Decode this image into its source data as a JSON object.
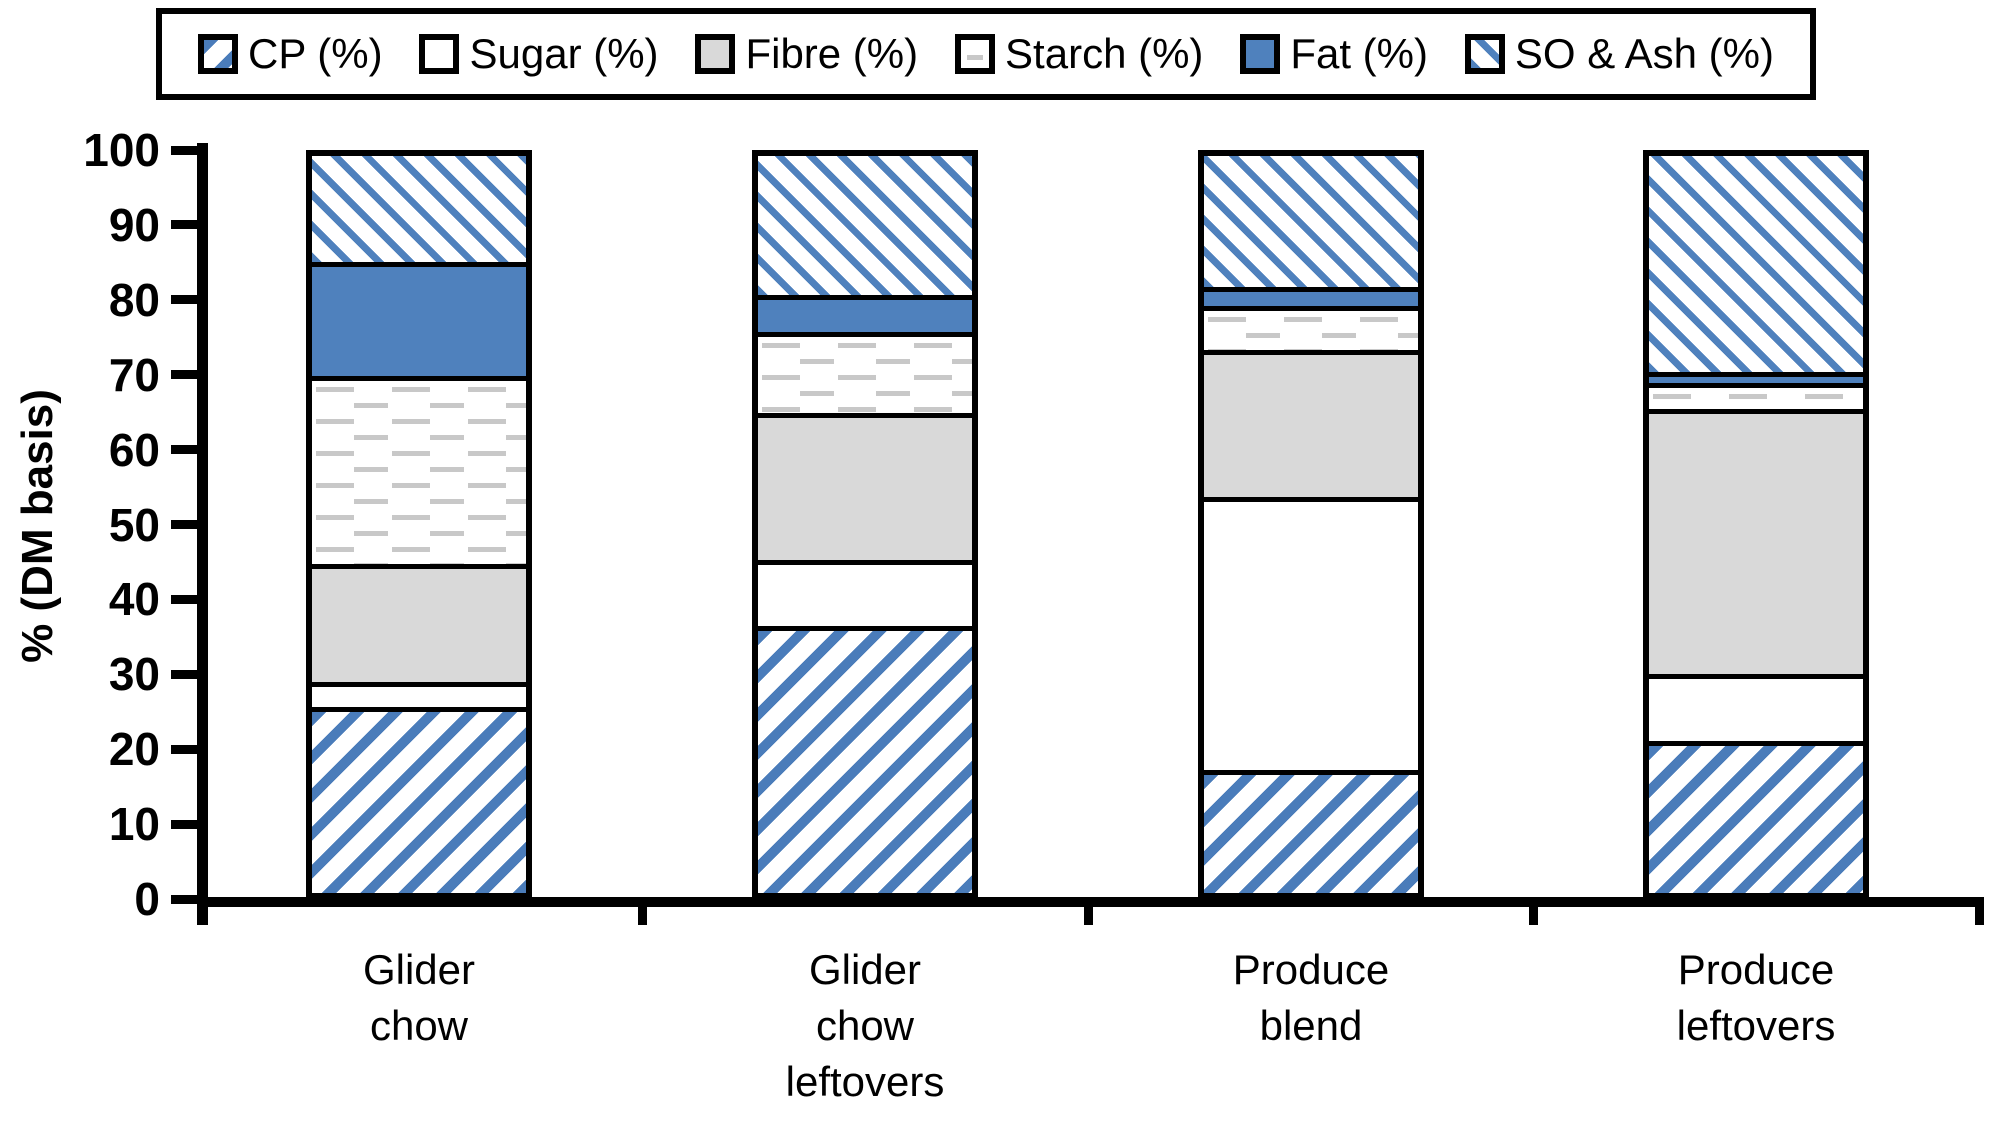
{
  "legend": {
    "position": "top"
  },
  "y_axis": {
    "title": "% (DM basis)",
    "ticks": [
      0,
      10,
      20,
      30,
      40,
      50,
      60,
      70,
      80,
      90,
      100
    ]
  },
  "colors": {
    "accent_blue": "#4f81bd",
    "hatch_blue": "#4a7cba",
    "fibre_gray": "#d9d9d9",
    "dash_gray": "#c8c8c8",
    "axis_black": "#000000",
    "background": "#ffffff"
  },
  "chart_data": {
    "type": "bar",
    "stacked": true,
    "grid": false,
    "legend_position": "top",
    "ylim": [
      0,
      100
    ],
    "ylabel": "% (DM basis)",
    "xlabel": "",
    "categories": [
      "Glider chow",
      "Glider chow leftovers",
      "Produce blend",
      "Produce leftovers"
    ],
    "category_label_lines": [
      [
        "Glider",
        "chow"
      ],
      [
        "Glider",
        "chow",
        "leftovers"
      ],
      [
        "Produce",
        "blend"
      ],
      [
        "Produce",
        "leftovers"
      ]
    ],
    "series": [
      {
        "name": "CP (%)",
        "pattern": "hatch-up",
        "values": [
          24.5,
          35.5,
          16,
          20
        ]
      },
      {
        "name": "Sugar (%)",
        "pattern": "plain",
        "values": [
          3.5,
          9,
          37,
          9
        ]
      },
      {
        "name": "Fibre (%)",
        "pattern": "solid-gray",
        "values": [
          16,
          20,
          20,
          36
        ]
      },
      {
        "name": "Starch (%)",
        "pattern": "dash",
        "values": [
          25.5,
          11,
          6,
          3.5
        ]
      },
      {
        "name": "Fat (%)",
        "pattern": "solid-blue",
        "values": [
          15.5,
          5,
          2.5,
          1.5
        ]
      },
      {
        "name": "SO & Ash (%)",
        "pattern": "hatch-down",
        "values": [
          15,
          19.5,
          18.5,
          30
        ]
      }
    ]
  }
}
